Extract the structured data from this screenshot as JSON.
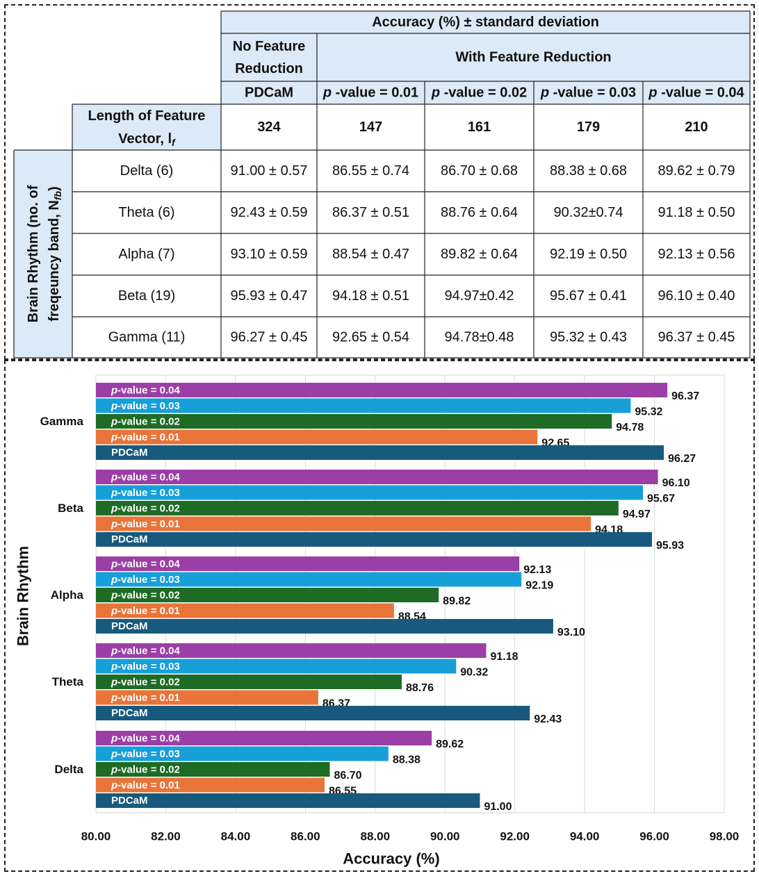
{
  "table": {
    "main_header": "Accuracy (%) ± standard deviation",
    "no_fr_header": "No Feature Reduction",
    "with_fr_header": "With Feature Reduction",
    "method_headers": [
      "PDCaM",
      "p -value = 0.01",
      "p -value = 0.02",
      "p -value = 0.03",
      "p -value = 0.04"
    ],
    "length_label": "Length of Feature Vector, l_f",
    "lengths": [
      "324",
      "147",
      "161",
      "179",
      "210"
    ],
    "row_group_label": "Brain Rhythm (no. of freqeuncy band, N_fb)",
    "rows": [
      {
        "name": "Delta (6)",
        "cells": [
          "91.00 ± 0.57",
          "86.55 ± 0.74",
          "86.70 ± 0.68",
          "88.38 ± 0.68",
          "89.62 ± 0.79"
        ]
      },
      {
        "name": "Theta (6)",
        "cells": [
          "92.43 ± 0.59",
          "86.37 ± 0.51",
          "88.76 ± 0.64",
          "90.32±0.74",
          "91.18 ± 0.50"
        ]
      },
      {
        "name": "Alpha (7)",
        "cells": [
          "93.10 ± 0.59",
          "88.54 ± 0.47",
          "89.82 ± 0.64",
          "92.19 ± 0.50",
          "92.13 ±  0.56"
        ]
      },
      {
        "name": "Beta (19)",
        "cells": [
          "95.93 ± 0.47",
          "94.18 ± 0.51",
          "94.97±0.42",
          "95.67 ± 0.41",
          "96.10 ± 0.40"
        ]
      },
      {
        "name": "Gamma (11)",
        "cells": [
          "96.27 ± 0.45",
          "92.65 ± 0.54",
          "94.78±0.48",
          "95.32 ± 0.43",
          "96.37 ± 0.45"
        ]
      }
    ]
  },
  "chart_data": {
    "type": "bar",
    "orientation": "horizontal",
    "xlabel": "Accuracy (%)",
    "ylabel": "Brain Rhythm",
    "xlim": [
      80,
      98
    ],
    "xticks": [
      "80.00",
      "82.00",
      "84.00",
      "86.00",
      "88.00",
      "90.00",
      "92.00",
      "94.00",
      "96.00",
      "98.00"
    ],
    "categories": [
      "Gamma",
      "Beta",
      "Alpha",
      "Theta",
      "Delta"
    ],
    "series": [
      {
        "name": "p-value = 0.04",
        "color": "#9b3fa6",
        "values": [
          96.37,
          96.1,
          92.13,
          91.18,
          89.62
        ]
      },
      {
        "name": "p-value = 0.03",
        "color": "#179fd8",
        "values": [
          95.32,
          95.67,
          92.19,
          90.32,
          88.38
        ]
      },
      {
        "name": "p-value = 0.02",
        "color": "#1e6b25",
        "values": [
          94.78,
          94.97,
          89.82,
          88.76,
          86.7
        ]
      },
      {
        "name": "p-value = 0.01",
        "color": "#e8743a",
        "values": [
          92.65,
          94.18,
          88.54,
          86.37,
          86.55
        ]
      },
      {
        "name": "PDCaM",
        "color": "#185a7d",
        "values": [
          96.27,
          95.93,
          93.1,
          92.43,
          91.0
        ]
      }
    ]
  }
}
